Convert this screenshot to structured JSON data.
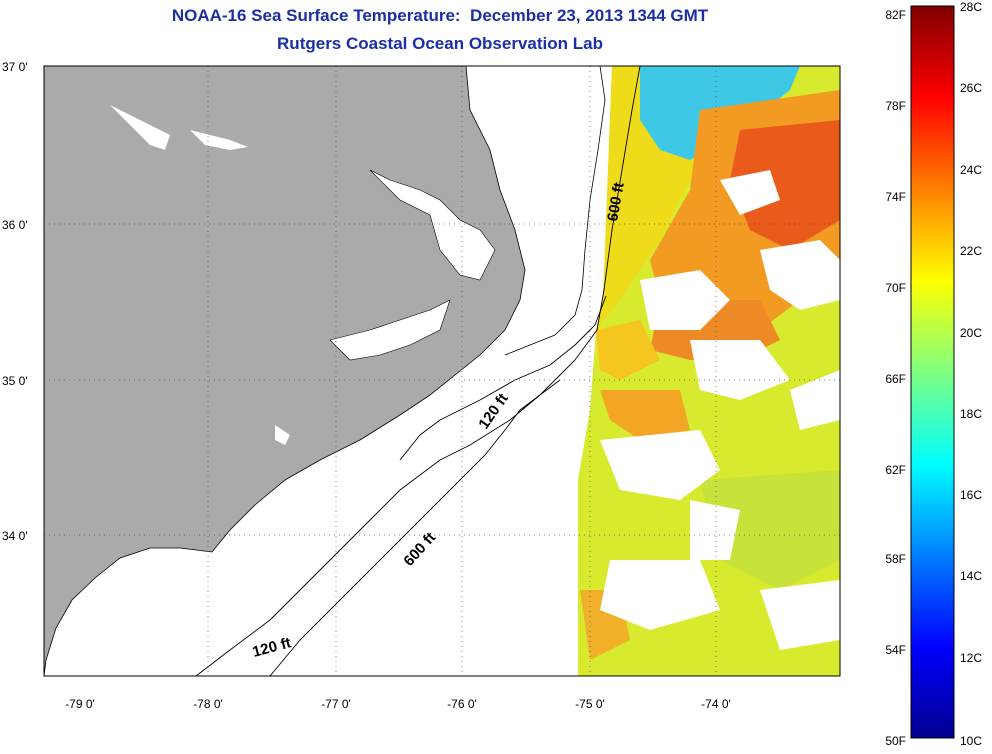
{
  "title": {
    "line1": "NOAA-16 Sea Surface Temperature:  December 23, 2013 1344 GMT",
    "line2": "Rutgers Coastal Ocean Observation Lab"
  },
  "map": {
    "lat_labels": [
      "37 0'",
      "36 0'",
      "35 0'",
      "34 0'"
    ],
    "lon_labels": [
      "-79 0'",
      "-78 0'",
      "-77 0'",
      "-76 0'",
      "-75 0'",
      "-74 0'"
    ],
    "contour_labels": [
      "600 ft",
      "120 ft",
      "600 ft",
      "120 ft"
    ]
  },
  "colorbar": {
    "fahrenheit_labels": [
      "82F",
      "78F",
      "74F",
      "70F",
      "66F",
      "62F",
      "58F",
      "54F",
      "50F"
    ],
    "celsius_labels": [
      "28C",
      "26C",
      "24C",
      "22C",
      "20C",
      "18C",
      "16C",
      "14C",
      "12C",
      "10C"
    ]
  },
  "colors": {
    "land": "#aaaaaa",
    "title": "#1b2fa6"
  }
}
